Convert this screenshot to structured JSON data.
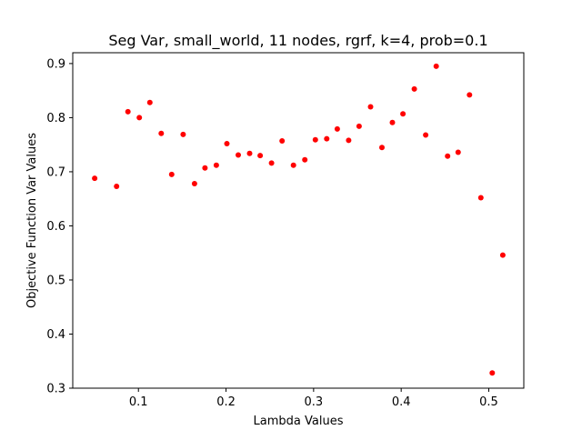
{
  "chart_data": {
    "type": "scatter",
    "title": "Seg Var, small_world, 11 nodes, rgrf, k=4, prob=0.1",
    "xlabel": "Lambda Values",
    "ylabel": "Objective Function Var Values",
    "xlim": [
      0.025,
      0.54
    ],
    "ylim": [
      0.3,
      0.92
    ],
    "xticks": [
      0.1,
      0.2,
      0.3,
      0.4,
      0.5
    ],
    "xtick_labels": [
      "0.1",
      "0.2",
      "0.3",
      "0.4",
      "0.5"
    ],
    "yticks": [
      0.3,
      0.4,
      0.5,
      0.6,
      0.7,
      0.8,
      0.9
    ],
    "ytick_labels": [
      "0.3",
      "0.4",
      "0.5",
      "0.6",
      "0.7",
      "0.8",
      "0.9"
    ],
    "grid": false,
    "legend": "none",
    "marker_color": "#ff0000",
    "points": [
      {
        "x": 0.05,
        "y": 0.688
      },
      {
        "x": 0.075,
        "y": 0.673
      },
      {
        "x": 0.088,
        "y": 0.811
      },
      {
        "x": 0.101,
        "y": 0.8
      },
      {
        "x": 0.113,
        "y": 0.828
      },
      {
        "x": 0.126,
        "y": 0.771
      },
      {
        "x": 0.138,
        "y": 0.695
      },
      {
        "x": 0.151,
        "y": 0.769
      },
      {
        "x": 0.164,
        "y": 0.678
      },
      {
        "x": 0.176,
        "y": 0.707
      },
      {
        "x": 0.189,
        "y": 0.712
      },
      {
        "x": 0.201,
        "y": 0.752
      },
      {
        "x": 0.214,
        "y": 0.731
      },
      {
        "x": 0.227,
        "y": 0.734
      },
      {
        "x": 0.239,
        "y": 0.73
      },
      {
        "x": 0.252,
        "y": 0.716
      },
      {
        "x": 0.264,
        "y": 0.757
      },
      {
        "x": 0.277,
        "y": 0.712
      },
      {
        "x": 0.29,
        "y": 0.722
      },
      {
        "x": 0.302,
        "y": 0.759
      },
      {
        "x": 0.315,
        "y": 0.761
      },
      {
        "x": 0.327,
        "y": 0.779
      },
      {
        "x": 0.34,
        "y": 0.758
      },
      {
        "x": 0.352,
        "y": 0.784
      },
      {
        "x": 0.365,
        "y": 0.82
      },
      {
        "x": 0.378,
        "y": 0.745
      },
      {
        "x": 0.39,
        "y": 0.791
      },
      {
        "x": 0.402,
        "y": 0.807
      },
      {
        "x": 0.415,
        "y": 0.853
      },
      {
        "x": 0.428,
        "y": 0.768
      },
      {
        "x": 0.44,
        "y": 0.895
      },
      {
        "x": 0.453,
        "y": 0.729
      },
      {
        "x": 0.465,
        "y": 0.736
      },
      {
        "x": 0.478,
        "y": 0.842
      },
      {
        "x": 0.491,
        "y": 0.652
      },
      {
        "x": 0.504,
        "y": 0.328
      },
      {
        "x": 0.516,
        "y": 0.546
      }
    ]
  }
}
